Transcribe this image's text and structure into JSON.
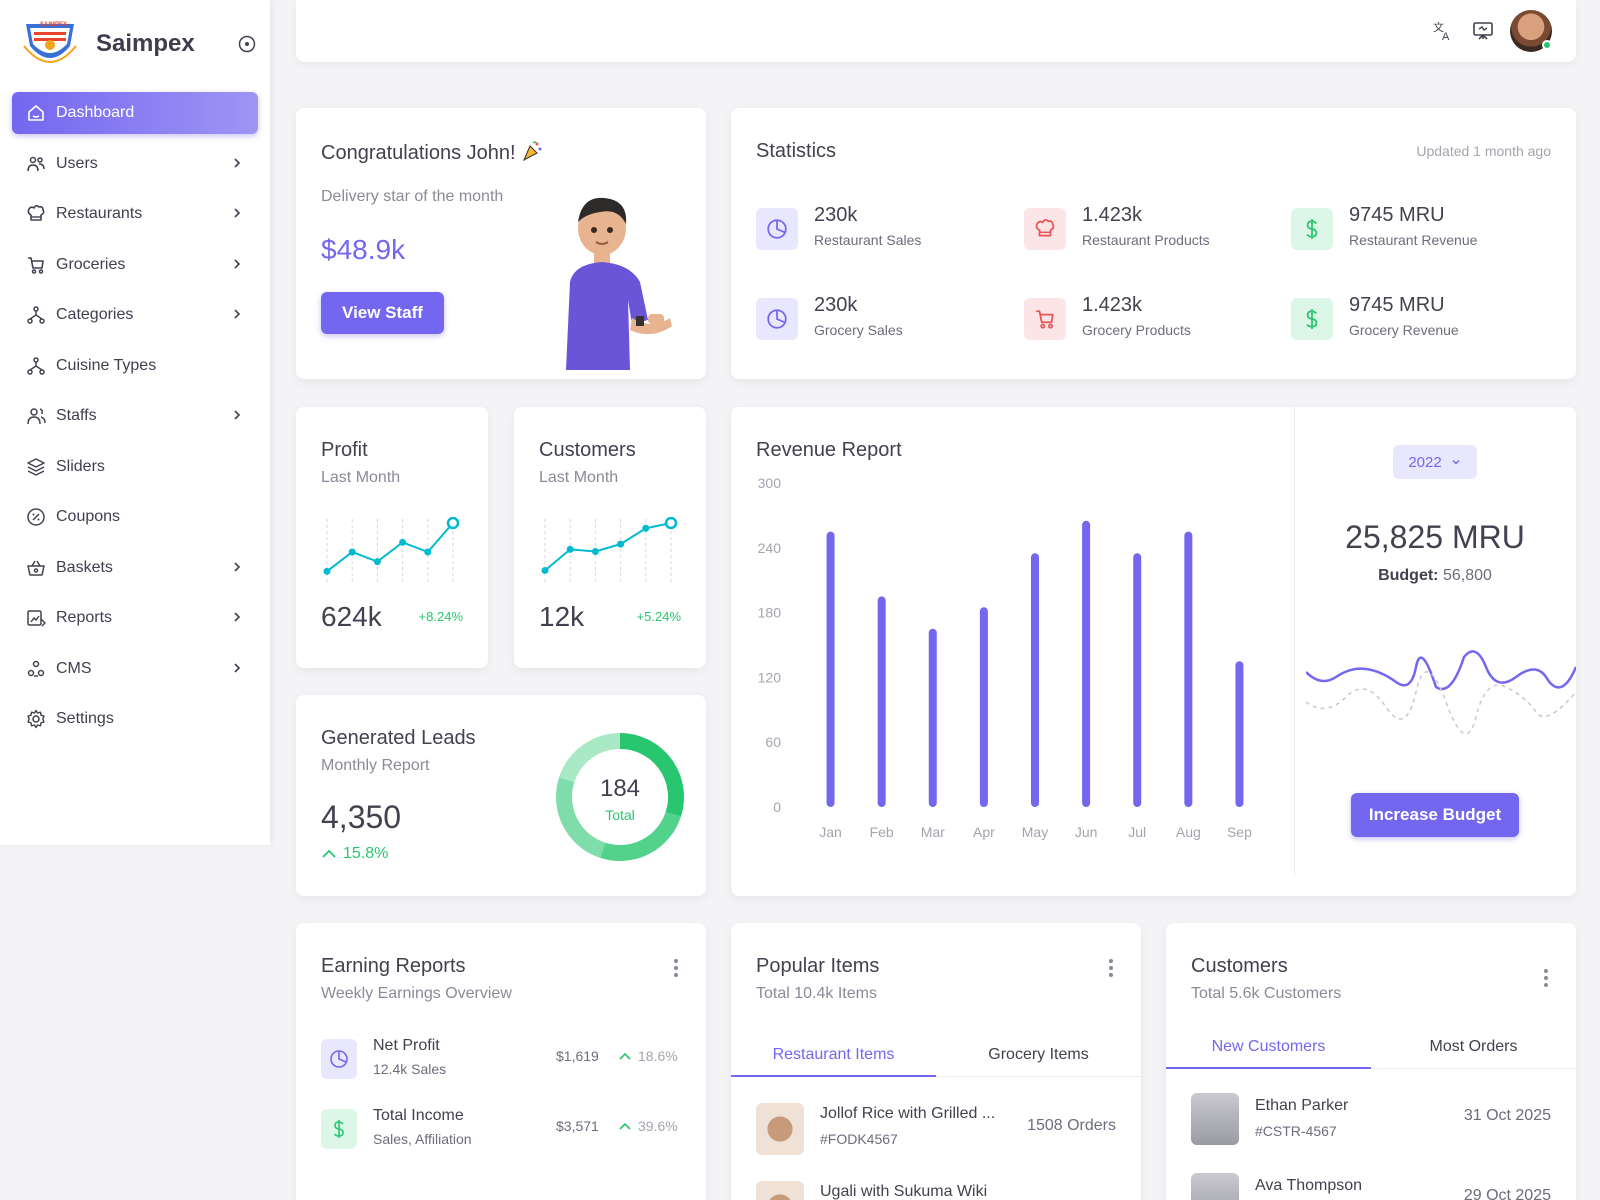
{
  "brand": {
    "name": "Saimpex",
    "logo_text": "SAIMPEX"
  },
  "sidebar": {
    "items": [
      {
        "label": "Dashboard",
        "icon": "home-icon",
        "active": true,
        "has_submenu": false
      },
      {
        "label": "Users",
        "icon": "users-icon",
        "has_submenu": true
      },
      {
        "label": "Restaurants",
        "icon": "chef-hat-icon",
        "has_submenu": true
      },
      {
        "label": "Groceries",
        "icon": "cart-icon",
        "has_submenu": true
      },
      {
        "label": "Categories",
        "icon": "hierarchy-icon",
        "has_submenu": true
      },
      {
        "label": "Cuisine Types",
        "icon": "hierarchy-icon",
        "has_submenu": false
      },
      {
        "label": "Staffs",
        "icon": "staff-icon",
        "has_submenu": true
      },
      {
        "label": "Sliders",
        "icon": "layers-icon",
        "has_submenu": false
      },
      {
        "label": "Coupons",
        "icon": "coupon-icon",
        "has_submenu": false
      },
      {
        "label": "Baskets",
        "icon": "basket-icon",
        "has_submenu": true
      },
      {
        "label": "Reports",
        "icon": "report-icon",
        "has_submenu": true
      },
      {
        "label": "CMS",
        "icon": "cms-icon",
        "has_submenu": true
      },
      {
        "label": "Settings",
        "icon": "gear-icon",
        "has_submenu": false
      }
    ]
  },
  "topbar": {
    "icons": [
      "translate-icon",
      "presentation-icon",
      "user-avatar"
    ]
  },
  "congrats": {
    "title": "Congratulations John!",
    "subtitle": "Delivery star of the month",
    "amount": "$48.9k",
    "button": "View Staff"
  },
  "statistics": {
    "title": "Statistics",
    "updated": "Updated 1 month ago",
    "items": [
      {
        "value": "230k",
        "label": "Restaurant Sales",
        "icon": "pie-chart-icon",
        "color": "#7367f0",
        "bg": "#e9e7fd"
      },
      {
        "value": "1.423k",
        "label": "Restaurant Products",
        "icon": "chef-hat-icon",
        "color": "#ea5455",
        "bg": "#fce5e6"
      },
      {
        "value": "9745 MRU",
        "label": "Restaurant Revenue",
        "icon": "dollar-icon",
        "color": "#28c76f",
        "bg": "#dcf6e8"
      },
      {
        "value": "230k",
        "label": "Grocery Sales",
        "icon": "pie-chart-icon",
        "color": "#7367f0",
        "bg": "#e9e7fd"
      },
      {
        "value": "1.423k",
        "label": "Grocery Products",
        "icon": "cart-icon",
        "color": "#ea5455",
        "bg": "#fce5e6"
      },
      {
        "value": "9745 MRU",
        "label": "Grocery Revenue",
        "icon": "dollar-icon",
        "color": "#28c76f",
        "bg": "#dcf6e8"
      }
    ]
  },
  "profit": {
    "title": "Profit",
    "subtitle": "Last Month",
    "value": "624k",
    "change": "+8.24%",
    "trend": [
      1,
      3,
      2,
      4,
      3,
      6
    ]
  },
  "customers_card": {
    "title": "Customers",
    "subtitle": "Last Month",
    "value": "12k",
    "change": "+5.24%",
    "trend": [
      1,
      3,
      2.8,
      3.5,
      5,
      5.5
    ]
  },
  "leads": {
    "title": "Generated Leads",
    "subtitle": "Monthly Report",
    "value": "4,350",
    "change": "15.8%",
    "donut_total": "184",
    "donut_label": "Total",
    "donut_segments": [
      0.3,
      0.25,
      0.25,
      0.2
    ],
    "donut_colors": [
      "#28c76f",
      "#53d28c",
      "#7eddaa",
      "#a9e9c5"
    ]
  },
  "revenue": {
    "title": "Revenue Report",
    "year": "2022",
    "amount": "25,825 MRU",
    "budget_label": "Budget:",
    "budget_value": "56,800",
    "button": "Increase Budget"
  },
  "chart_data": {
    "type": "bar",
    "categories": [
      "Jan",
      "Feb",
      "Mar",
      "Apr",
      "May",
      "Jun",
      "Jul",
      "Aug",
      "Sep"
    ],
    "values": [
      255,
      195,
      165,
      185,
      235,
      265,
      235,
      255,
      135
    ],
    "ylim": [
      0,
      300
    ],
    "yticks": [
      0,
      60,
      120,
      180,
      240,
      300
    ],
    "color": "#7367f0",
    "grid": false
  },
  "earning": {
    "title": "Earning Reports",
    "subtitle": "Weekly Earnings Overview",
    "rows": [
      {
        "name": "Net Profit",
        "sub": "12.4k Sales",
        "value": "$1,619",
        "pct": "18.6%",
        "icon": "pie-chart-icon",
        "color": "#7367f0",
        "bg": "#e9e7fd"
      },
      {
        "name": "Total Income",
        "sub": "Sales, Affiliation",
        "value": "$3,571",
        "pct": "39.6%",
        "icon": "dollar-icon",
        "color": "#28c76f",
        "bg": "#dcf6e8"
      }
    ]
  },
  "popular": {
    "title": "Popular Items",
    "subtitle": "Total 10.4k Items",
    "tabs": [
      "Restaurant Items",
      "Grocery Items"
    ],
    "rows": [
      {
        "name": "Jollof Rice with Grilled ...",
        "code": "#FODK4567",
        "orders": "1508 Orders"
      },
      {
        "name": "Ugali with Sukuma Wiki",
        "code": "",
        "orders": ""
      }
    ]
  },
  "customers_list": {
    "title": "Customers",
    "subtitle": "Total 5.6k Customers",
    "tabs": [
      "New Customers",
      "Most Orders"
    ],
    "rows": [
      {
        "name": "Ethan Parker",
        "code": "#CSTR-4567",
        "date": "31 Oct 2025"
      },
      {
        "name": "Ava Thompson",
        "code": "",
        "date": "29 Oct 2025"
      }
    ]
  }
}
